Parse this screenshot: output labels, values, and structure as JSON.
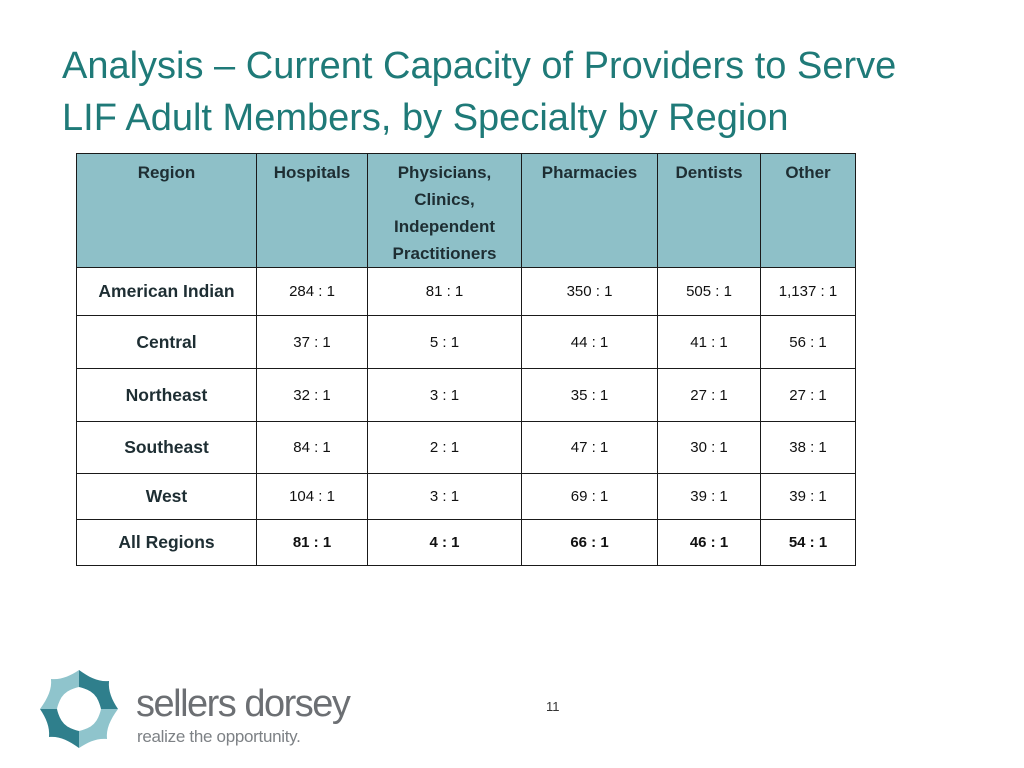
{
  "title": {
    "line1": "Analysis – Current Capacity of Providers to Serve",
    "line2": "LIF Adult Members, by Specialty by Region"
  },
  "table": {
    "headers": {
      "region": "Region",
      "hospitals": "Hospitals",
      "physicians_line1": "Physicians,",
      "physicians_line2": "Clinics,",
      "physicians_line3": "Independent",
      "physicians_line4": "Practitioners",
      "pharmacies": "Pharmacies",
      "dentists": "Dentists",
      "other": "Other"
    },
    "rows": [
      {
        "region": "American Indian",
        "hospitals": "284 : 1",
        "physicians": "81 : 1",
        "pharmacies": "350 : 1",
        "dentists": "505 : 1",
        "other": "1,137 : 1"
      },
      {
        "region": "Central",
        "hospitals": "37 : 1",
        "physicians": "5 : 1",
        "pharmacies": "44 : 1",
        "dentists": "41 : 1",
        "other": "56 : 1"
      },
      {
        "region": "Northeast",
        "hospitals": "32 : 1",
        "physicians": "3 : 1",
        "pharmacies": "35 : 1",
        "dentists": "27 : 1",
        "other": "27 : 1"
      },
      {
        "region": "Southeast",
        "hospitals": "84 : 1",
        "physicians": "2 : 1",
        "pharmacies": "47 : 1",
        "dentists": "30 : 1",
        "other": "38 : 1"
      },
      {
        "region": "West",
        "hospitals": "104 : 1",
        "physicians": "3 : 1",
        "pharmacies": "69 : 1",
        "dentists": "39 : 1",
        "other": "39 : 1"
      },
      {
        "region": "All Regions",
        "hospitals": "81 : 1",
        "physicians": "4 : 1",
        "pharmacies": "66 : 1",
        "dentists": "46 : 1",
        "other": "54 : 1"
      }
    ]
  },
  "page_number": "11",
  "logo": {
    "name": "sellers dorsey",
    "tagline": "realize the opportunity."
  },
  "colors": {
    "title": "#1f7a78",
    "header_fill": "#8ec0c8",
    "logo_teal": "#2f7f8c",
    "logo_light": "#8fc4cc"
  }
}
